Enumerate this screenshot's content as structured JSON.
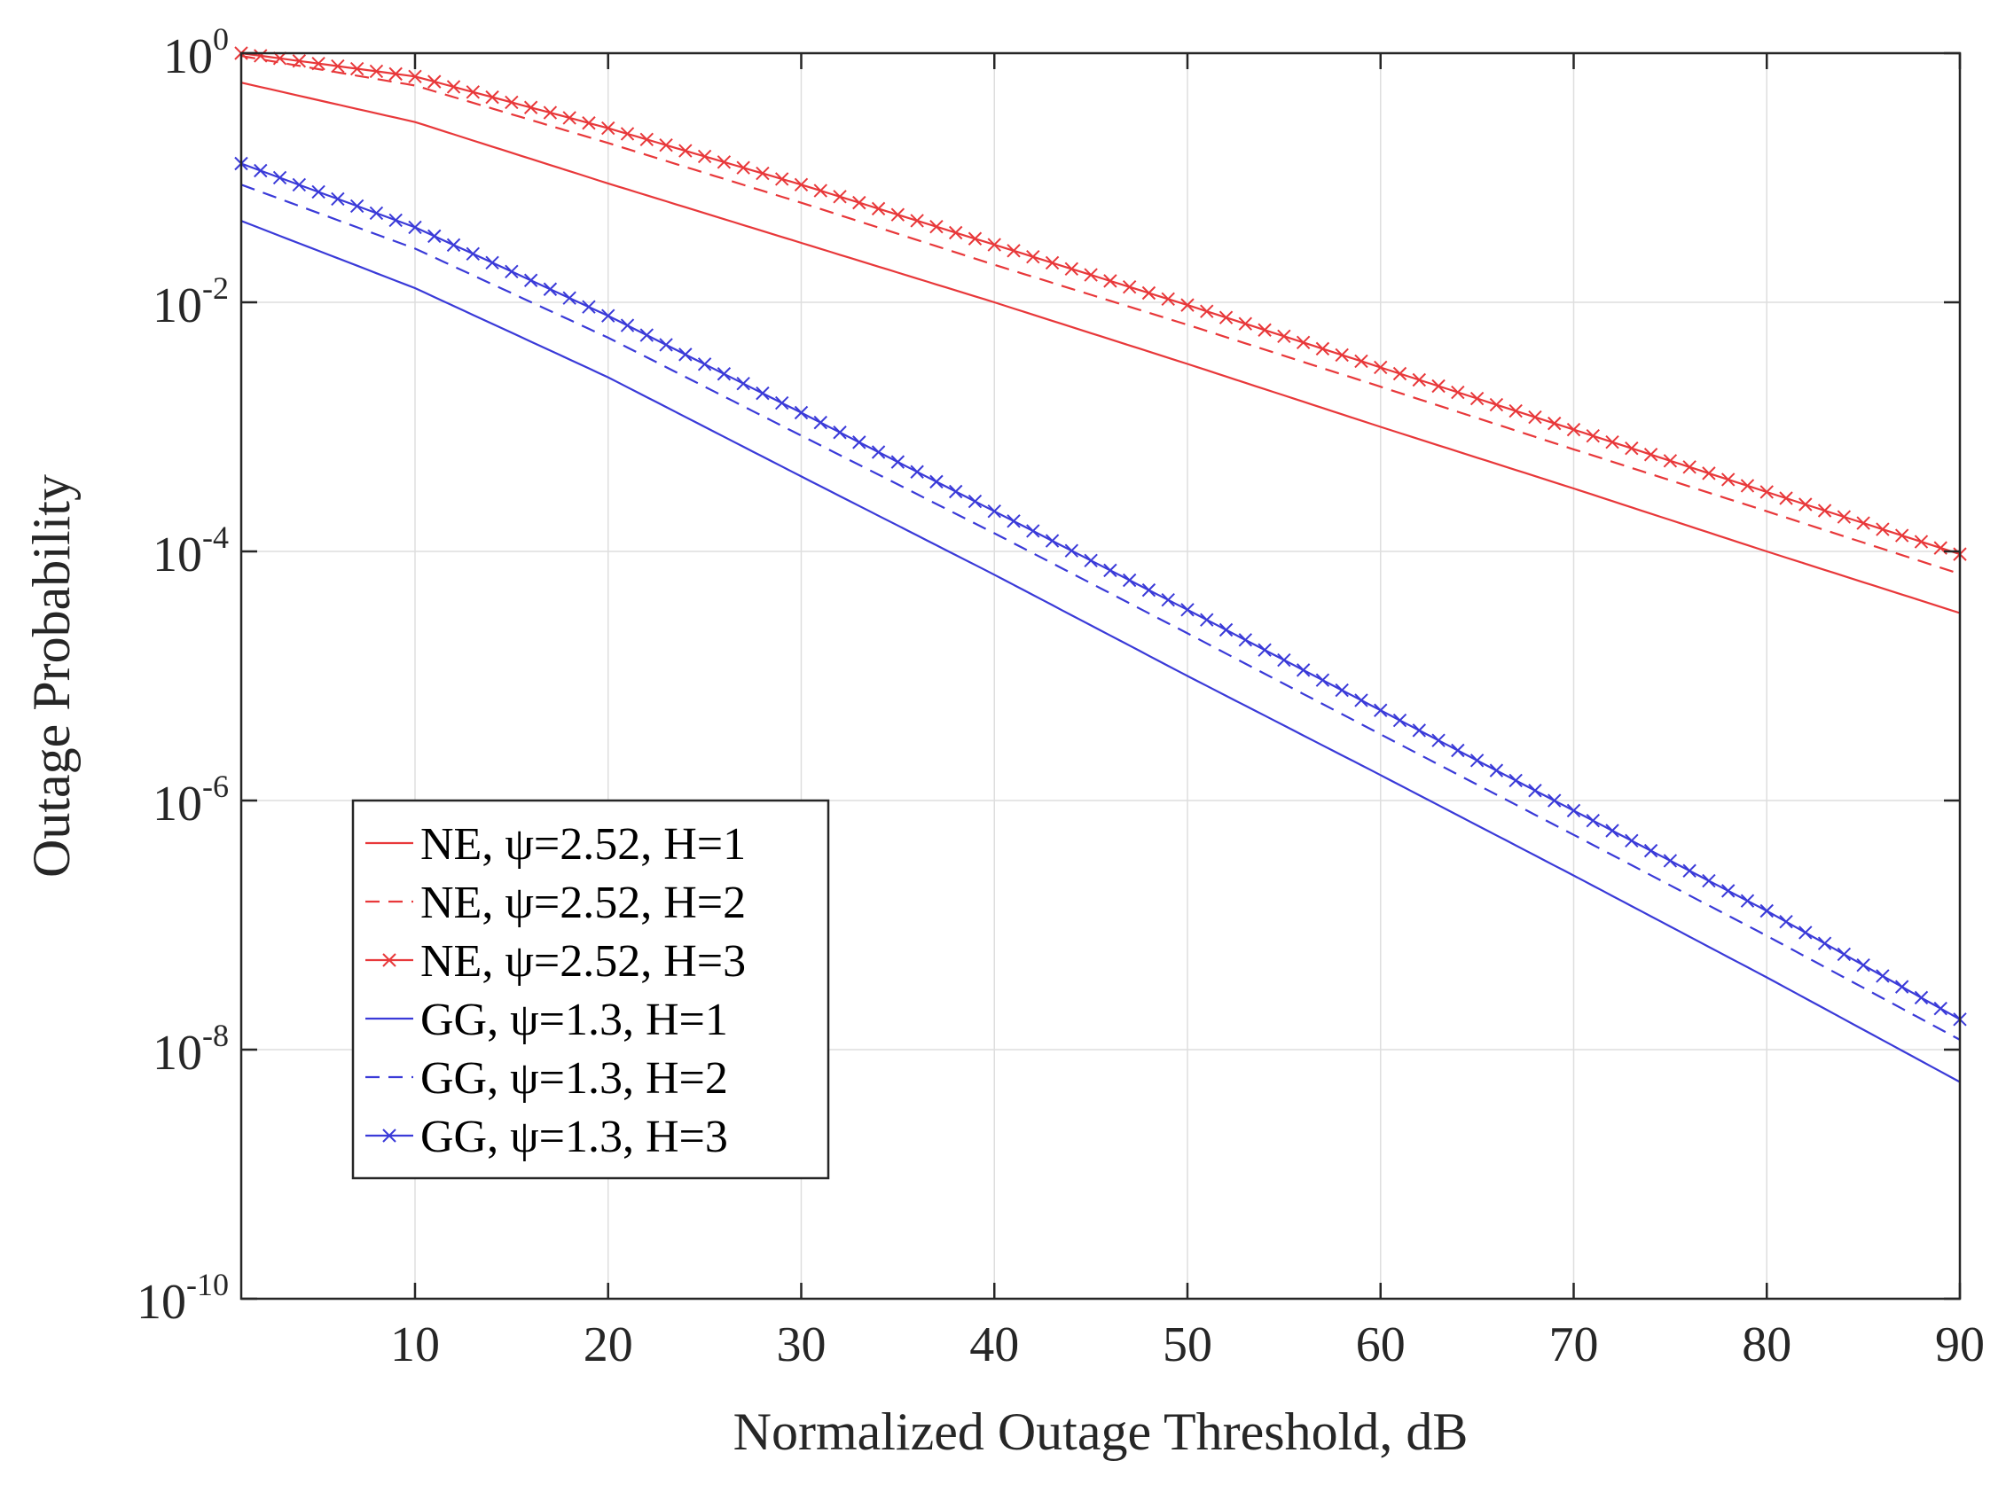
{
  "chart_data": {
    "type": "line",
    "title": "",
    "xlabel": "Normalized Outage Threshold, dB",
    "ylabel": "Outage Probability",
    "xlim": [
      1,
      90
    ],
    "ylim_log10": [
      -10,
      0
    ],
    "y_scale": "log",
    "grid": true,
    "legend_position": "lower-left",
    "x_ticks": [
      10,
      20,
      30,
      40,
      50,
      60,
      70,
      80,
      90
    ],
    "x_tick_labels": [
      "10",
      "20",
      "30",
      "40",
      "50",
      "60",
      "70",
      "80",
      "90"
    ],
    "y_ticks": [
      {
        "base": "10",
        "exp": "0"
      },
      {
        "base": "10",
        "exp": "-2"
      },
      {
        "base": "10",
        "exp": "-4"
      },
      {
        "base": "10",
        "exp": "-6"
      },
      {
        "base": "10",
        "exp": "-8"
      },
      {
        "base": "10",
        "exp": "-10"
      }
    ],
    "y_tick_values": [
      1,
      0.01,
      0.0001,
      1e-06,
      1e-08,
      1e-10
    ],
    "series": [
      {
        "name": "NE, ψ=2.52, H=1",
        "color": "#e8383a",
        "style": "solid",
        "marker": "none",
        "x": [
          1,
          10,
          20,
          30,
          40,
          50,
          60,
          70,
          80,
          90
        ],
        "y": [
          0.58,
          0.28,
          0.09,
          0.03,
          0.01,
          0.0032,
          0.001,
          0.00032,
          0.0001,
          3.2e-05
        ]
      },
      {
        "name": "NE, ψ=2.52, H=2",
        "color": "#e8383a",
        "style": "dashed",
        "marker": "none",
        "x": [
          1,
          10,
          20,
          30,
          40,
          50,
          60,
          70,
          80,
          90
        ],
        "y": [
          0.95,
          0.55,
          0.19,
          0.063,
          0.02,
          0.0066,
          0.0021,
          0.00066,
          0.00021,
          6.6e-05
        ]
      },
      {
        "name": "NE, ψ=2.52, H=3",
        "color": "#e8383a",
        "style": "solid",
        "marker": "x",
        "x": [
          1,
          10,
          20,
          30,
          40,
          50,
          60,
          70,
          80,
          90
        ],
        "y": [
          1.0,
          0.65,
          0.25,
          0.088,
          0.029,
          0.0095,
          0.003,
          0.00095,
          0.0003,
          9.5e-05
        ]
      },
      {
        "name": "GG, ψ=1.3, H=1",
        "color": "#3a3ad8",
        "style": "solid",
        "marker": "none",
        "x": [
          1,
          10,
          20,
          30,
          40,
          50,
          60,
          70,
          80,
          90
        ],
        "y": [
          0.045,
          0.013,
          0.0025,
          0.0004,
          6.5e-05,
          1e-05,
          1.6e-06,
          2.5e-07,
          3.8e-08,
          5.5e-09
        ]
      },
      {
        "name": "GG, ψ=1.3, H=2",
        "color": "#3a3ad8",
        "style": "dashed",
        "marker": "none",
        "x": [
          1,
          10,
          20,
          30,
          40,
          50,
          60,
          70,
          80,
          90
        ],
        "y": [
          0.088,
          0.027,
          0.0052,
          0.00085,
          0.00014,
          2.2e-05,
          3.4e-06,
          5.3e-07,
          8.2e-08,
          1.2e-08
        ]
      },
      {
        "name": "GG, ψ=1.3, H=3",
        "color": "#3a3ad8",
        "style": "solid",
        "marker": "x",
        "x": [
          1,
          10,
          20,
          30,
          40,
          50,
          60,
          70,
          80,
          90
        ],
        "y": [
          0.13,
          0.04,
          0.0078,
          0.0013,
          0.00021,
          3.4e-05,
          5.3e-06,
          8.3e-07,
          1.3e-07,
          1.75e-08
        ]
      }
    ]
  }
}
